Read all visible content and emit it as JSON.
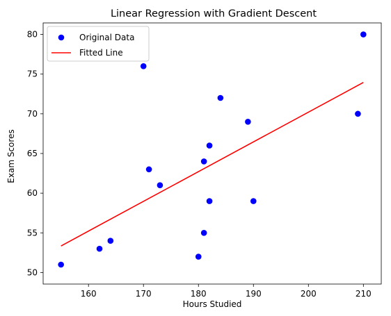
{
  "chart_data": {
    "type": "scatter",
    "title": "Linear Regression with Gradient Descent",
    "xlabel": "Hours Studied",
    "ylabel": "Exam Scores",
    "xlim": [
      151.75,
      213.25
    ],
    "ylim": [
      48.55,
      81.45
    ],
    "xticks": [
      160,
      170,
      180,
      190,
      200,
      210
    ],
    "yticks": [
      50,
      55,
      60,
      65,
      70,
      75,
      80
    ],
    "grid": false,
    "legend_position": "top-left",
    "series": [
      {
        "name": "Original Data",
        "kind": "scatter",
        "color": "#0000ff",
        "points": [
          {
            "x": 155,
            "y": 51
          },
          {
            "x": 162,
            "y": 53
          },
          {
            "x": 164,
            "y": 54
          },
          {
            "x": 170,
            "y": 76
          },
          {
            "x": 171,
            "y": 63
          },
          {
            "x": 173,
            "y": 61
          },
          {
            "x": 180,
            "y": 52
          },
          {
            "x": 181,
            "y": 55
          },
          {
            "x": 181,
            "y": 64
          },
          {
            "x": 182,
            "y": 59
          },
          {
            "x": 182,
            "y": 66
          },
          {
            "x": 184,
            "y": 72
          },
          {
            "x": 189,
            "y": 69
          },
          {
            "x": 190,
            "y": 59
          },
          {
            "x": 209,
            "y": 70
          },
          {
            "x": 210,
            "y": 80
          }
        ]
      },
      {
        "name": "Fitted Line",
        "kind": "line",
        "color": "#ff0000",
        "points": [
          {
            "x": 155,
            "y": 53.35
          },
          {
            "x": 210,
            "y": 73.95
          }
        ]
      }
    ]
  }
}
